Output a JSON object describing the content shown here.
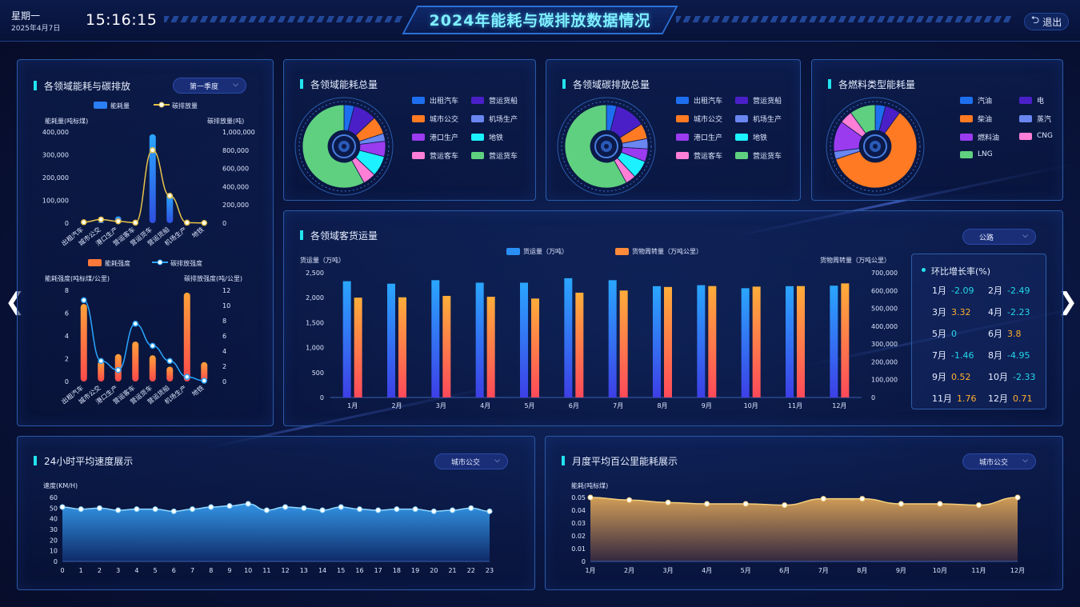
{
  "header": {
    "weekday": "星期一",
    "date": "2025年4月7日",
    "time": "15:16:15",
    "title": "2024年能耗与碳排放数据情况",
    "exit_label": "退出"
  },
  "colors": {
    "accent": "#22e3ef",
    "blue": "#1e6ff0",
    "orange": "#ff7a22",
    "gold": "#e6c34a"
  },
  "panel_sector": {
    "title": "各领域能耗与碳排放",
    "dropdown": "第一季度",
    "legend": [
      "能耗量",
      "碳排放量"
    ],
    "y1label": "能耗量(吨标煤)",
    "y2label": "碳排放量(吨)",
    "legend2": [
      "能耗强度",
      "碳排放强度"
    ],
    "y3label": "能耗强度(吨标煤/公里)",
    "y4label": "碳排放强度(吨/公里)"
  },
  "panel_total_energy": {
    "title": "各领域能耗总量",
    "legend": [
      "出租汽车",
      "营运货船",
      "城市公交",
      "机场生产",
      "港口生产",
      "地铁",
      "营运客车",
      "营运货车"
    ]
  },
  "panel_total_carbon": {
    "title": "各领域碳排放总量",
    "legend": [
      "出租汽车",
      "营运货船",
      "城市公交",
      "机场生产",
      "港口生产",
      "地铁",
      "营运客车",
      "营运货车"
    ]
  },
  "panel_fuel": {
    "title": "各燃料类型能耗量",
    "legend": [
      "汽油",
      "电",
      "柴油",
      "蒸汽",
      "燃料油",
      "CNG",
      "LNG"
    ]
  },
  "panel_freight": {
    "title": "各领域客货运量",
    "dropdown": "公路",
    "legend": [
      "货运量（万吨）",
      "货物周转量（万吨公里）"
    ],
    "y1label": "货运量（万吨）",
    "y2label": "货物周转量（万吨公里）"
  },
  "growth": {
    "title": "环比增长率(%)",
    "items": [
      {
        "m": "1月",
        "v": "-2.09",
        "c": "#22d8ea"
      },
      {
        "m": "2月",
        "v": "-2.49",
        "c": "#22d8ea"
      },
      {
        "m": "3月",
        "v": "3.32",
        "c": "#ffb02e"
      },
      {
        "m": "4月",
        "v": "-2.23",
        "c": "#22d8ea"
      },
      {
        "m": "5月",
        "v": "0",
        "c": "#22d8ea"
      },
      {
        "m": "6月",
        "v": "3.8",
        "c": "#ffb02e"
      },
      {
        "m": "7月",
        "v": "-1.46",
        "c": "#22d8ea"
      },
      {
        "m": "8月",
        "v": "-4.95",
        "c": "#22d8ea"
      },
      {
        "m": "9月",
        "v": "0.52",
        "c": "#ffb02e"
      },
      {
        "m": "10月",
        "v": "-2.33",
        "c": "#22d8ea"
      },
      {
        "m": "11月",
        "v": "1.76",
        "c": "#ffb02e"
      },
      {
        "m": "12月",
        "v": "0.71",
        "c": "#ffb02e"
      }
    ]
  },
  "panel_speed": {
    "title": "24小时平均速度展示",
    "dropdown": "城市公交",
    "ylabel": "速度(KM/H)"
  },
  "panel_monthly": {
    "title": "月度平均百公里能耗展示",
    "dropdown": "城市公交",
    "ylabel": "能耗(吨标煤)"
  },
  "chart_data": [
    {
      "type": "bar",
      "id": "sector-energy",
      "categories": [
        "出租汽车",
        "城市公交",
        "港口生产",
        "营运客车",
        "营运货车",
        "营运货船",
        "机场生产",
        "地铁"
      ],
      "series": [
        {
          "name": "能耗量",
          "values": [
            3000,
            5000,
            30000,
            2000,
            390000,
            130000,
            2000,
            1000
          ]
        },
        {
          "name": "碳排放量",
          "type": "line",
          "values": [
            10000,
            40000,
            20000,
            5000,
            800000,
            300000,
            5000,
            2000
          ]
        }
      ],
      "ylim": [
        0,
        400000
      ],
      "y2lim": [
        0,
        1000000
      ],
      "yticks": [
        "0",
        "100,000",
        "200,000",
        "300,000",
        "400,000"
      ],
      "y2ticks": [
        "0",
        "200,000",
        "400,000",
        "600,000",
        "800,000",
        "1,000,000"
      ]
    },
    {
      "type": "bar",
      "id": "sector-intensity",
      "categories": [
        "出租汽车",
        "城市公交",
        "港口生产",
        "营运客车",
        "营运货车",
        "营运货船",
        "机场生产",
        "地铁"
      ],
      "series": [
        {
          "name": "能耗强度",
          "values": [
            6.8,
            1.8,
            2.4,
            3.5,
            2.3,
            1.3,
            7.8,
            1.7
          ]
        },
        {
          "name": "碳排放强度",
          "type": "line",
          "values": [
            10.7,
            2.7,
            1.5,
            7.6,
            4.7,
            2.7,
            0.6,
            0.1
          ]
        }
      ],
      "ylim": [
        0,
        8
      ],
      "y2lim": [
        0,
        12
      ],
      "yticks": [
        "0",
        "2",
        "4",
        "6",
        "8"
      ],
      "y2ticks": [
        "0",
        "2",
        "4",
        "6",
        "8",
        "10",
        "12"
      ]
    },
    {
      "type": "pie",
      "id": "pie-energy",
      "labels": [
        "出租汽车",
        "营运货船",
        "城市公交",
        "机场生产",
        "港口生产",
        "地铁",
        "营运客车",
        "营运货车"
      ],
      "values": [
        4,
        9,
        7,
        3,
        6,
        8,
        5,
        58
      ]
    },
    {
      "type": "pie",
      "id": "pie-carbon",
      "labels": [
        "出租汽车",
        "营运货船",
        "城市公交",
        "机场生产",
        "港口生产",
        "地铁",
        "营运客车",
        "营运货车"
      ],
      "values": [
        4,
        12,
        6,
        4,
        5,
        7,
        4,
        58
      ]
    },
    {
      "type": "pie",
      "id": "pie-fuel",
      "labels": [
        "汽油",
        "电",
        "柴油",
        "蒸汽",
        "燃料油",
        "CNG",
        "LNG"
      ],
      "values": [
        4,
        6,
        60,
        3,
        12,
        5,
        10
      ]
    },
    {
      "type": "bar",
      "id": "freight",
      "categories": [
        "1月",
        "2月",
        "3月",
        "4月",
        "5月",
        "6月",
        "7月",
        "8月",
        "9月",
        "10月",
        "11月",
        "12月"
      ],
      "series": [
        {
          "name": "货运量（万吨）",
          "values": [
            2330,
            2280,
            2350,
            2300,
            2300,
            2390,
            2350,
            2230,
            2250,
            2190,
            2230,
            2240
          ]
        },
        {
          "name": "货物周转量（万吨公里）",
          "axis": "right",
          "values": [
            560000,
            562000,
            570000,
            565000,
            555000,
            588000,
            600000,
            620000,
            625000,
            622000,
            625000,
            640000
          ]
        }
      ],
      "ylim": [
        0,
        2500
      ],
      "y2lim": [
        0,
        700000
      ],
      "yticks": [
        "0",
        "500",
        "1,000",
        "1,500",
        "2,000",
        "2,500"
      ],
      "y2ticks": [
        "0",
        "100,000",
        "200,000",
        "300,000",
        "400,000",
        "500,000",
        "600,000",
        "700,000"
      ]
    },
    {
      "type": "area",
      "id": "speed",
      "x": [
        "0",
        "1",
        "2",
        "3",
        "4",
        "5",
        "6",
        "7",
        "8",
        "9",
        "10",
        "11",
        "12",
        "13",
        "14",
        "15",
        "16",
        "17",
        "18",
        "19",
        "20",
        "21",
        "22",
        "23"
      ],
      "values": [
        51,
        49,
        50,
        48,
        49,
        49,
        47,
        49,
        51,
        52,
        54,
        48,
        51,
        50,
        48,
        51,
        49,
        48,
        49,
        49,
        47,
        48,
        50,
        47
      ],
      "ylim": [
        0,
        60
      ],
      "yticks": [
        "0",
        "10",
        "20",
        "30",
        "40",
        "50",
        "60"
      ]
    },
    {
      "type": "area",
      "id": "monthly",
      "x": [
        "1月",
        "2月",
        "3月",
        "4月",
        "5月",
        "6月",
        "7月",
        "8月",
        "9月",
        "10月",
        "11月",
        "12月"
      ],
      "values": [
        0.05,
        0.048,
        0.046,
        0.045,
        0.045,
        0.044,
        0.049,
        0.049,
        0.045,
        0.045,
        0.044,
        0.05
      ],
      "ylim": [
        0,
        0.05
      ],
      "yticks": [
        "0",
        "0.01",
        "0.02",
        "0.03",
        "0.04",
        "0.05"
      ]
    }
  ]
}
